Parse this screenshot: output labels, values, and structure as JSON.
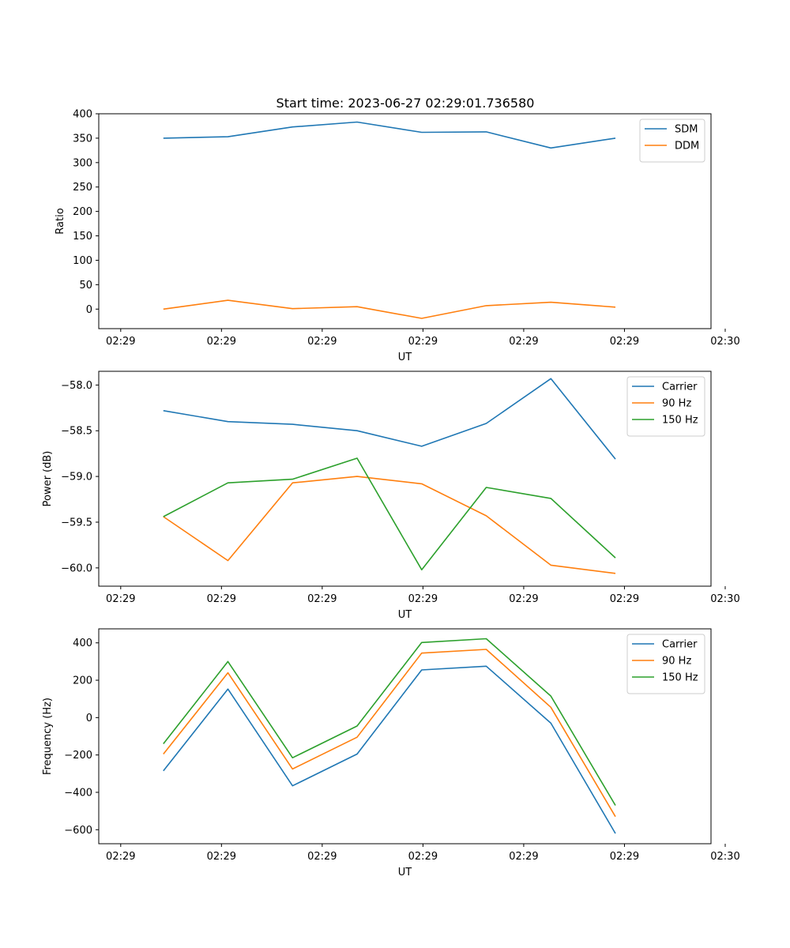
{
  "figure": {
    "title": "Start time: 2023-06-27 02:29:01.736580"
  },
  "chart_data": [
    {
      "type": "line",
      "ylabel": "Ratio",
      "xlabel": "UT",
      "xlim": [
        0,
        4.74
      ],
      "ylim": [
        -40,
        400
      ],
      "x_ticks": [
        {
          "value": 0.17,
          "label": "02:29"
        },
        {
          "value": 0.95,
          "label": "02:29"
        },
        {
          "value": 1.73,
          "label": "02:29"
        },
        {
          "value": 2.51,
          "label": "02:29"
        },
        {
          "value": 3.29,
          "label": "02:29"
        },
        {
          "value": 4.07,
          "label": "02:29"
        },
        {
          "value": 4.85,
          "label": "02:30"
        }
      ],
      "y_ticks": [
        400,
        350,
        300,
        250,
        200,
        150,
        100,
        50,
        0
      ],
      "y_tick_labels": [
        "400",
        "350",
        "300",
        "250",
        "200",
        "150",
        "100",
        "50",
        "0"
      ],
      "x": [
        0.5,
        1.0,
        1.5,
        2.0,
        2.5,
        3.0,
        3.5,
        4.0
      ],
      "series": [
        {
          "name": "SDM",
          "color": "#1f77b4",
          "values": [
            350,
            353,
            373,
            383,
            362,
            363,
            330,
            350
          ]
        },
        {
          "name": "DDM",
          "color": "#ff7f0e",
          "values": [
            0,
            18,
            1,
            5,
            -19,
            7,
            14,
            4
          ]
        }
      ],
      "legend": "upper right"
    },
    {
      "type": "line",
      "ylabel": "Power (dB)",
      "xlabel": "UT",
      "xlim": [
        0,
        4.74
      ],
      "ylim": [
        -60.2,
        -57.85
      ],
      "x_ticks": [
        {
          "value": 0.17,
          "label": "02:29"
        },
        {
          "value": 0.95,
          "label": "02:29"
        },
        {
          "value": 1.73,
          "label": "02:29"
        },
        {
          "value": 2.51,
          "label": "02:29"
        },
        {
          "value": 3.29,
          "label": "02:29"
        },
        {
          "value": 4.07,
          "label": "02:29"
        },
        {
          "value": 4.85,
          "label": "02:30"
        }
      ],
      "y_ticks": [
        -58.0,
        -58.5,
        -59.0,
        -59.5,
        -60.0
      ],
      "y_tick_labels": [
        "−58.0",
        "−58.5",
        "−59.0",
        "−59.5",
        "−60.0"
      ],
      "x": [
        0.5,
        1.0,
        1.5,
        2.0,
        2.5,
        3.0,
        3.5,
        4.0
      ],
      "series": [
        {
          "name": "Carrier",
          "color": "#1f77b4",
          "values": [
            -58.28,
            -58.4,
            -58.43,
            -58.5,
            -58.67,
            -58.42,
            -57.93,
            -58.81
          ]
        },
        {
          "name": "90 Hz",
          "color": "#ff7f0e",
          "values": [
            -59.44,
            -59.92,
            -59.07,
            -59.0,
            -59.08,
            -59.43,
            -59.97,
            -60.06
          ]
        },
        {
          "name": "150 Hz",
          "color": "#2ca02c",
          "values": [
            -59.44,
            -59.07,
            -59.03,
            -58.8,
            -60.02,
            -59.12,
            -59.24,
            -59.89
          ]
        }
      ],
      "legend": "upper right"
    },
    {
      "type": "line",
      "ylabel": "Frequency (Hz)",
      "xlabel": "UT",
      "xlim": [
        0,
        4.74
      ],
      "ylim": [
        -675,
        475
      ],
      "x_ticks": [
        {
          "value": 0.17,
          "label": "02:29"
        },
        {
          "value": 0.95,
          "label": "02:29"
        },
        {
          "value": 1.73,
          "label": "02:29"
        },
        {
          "value": 2.51,
          "label": "02:29"
        },
        {
          "value": 3.29,
          "label": "02:29"
        },
        {
          "value": 4.07,
          "label": "02:29"
        },
        {
          "value": 4.85,
          "label": "02:30"
        }
      ],
      "y_ticks": [
        400,
        200,
        0,
        -200,
        -400,
        -600
      ],
      "y_tick_labels": [
        "400",
        "200",
        "0",
        "−200",
        "−400",
        "−600"
      ],
      "x": [
        0.5,
        1.0,
        1.5,
        2.0,
        2.5,
        3.0,
        3.5,
        4.0
      ],
      "series": [
        {
          "name": "Carrier",
          "color": "#1f77b4",
          "values": [
            -285,
            153,
            -365,
            -195,
            255,
            275,
            -30,
            -620
          ]
        },
        {
          "name": "90 Hz",
          "color": "#ff7f0e",
          "values": [
            -195,
            240,
            -275,
            -105,
            345,
            365,
            55,
            -530
          ]
        },
        {
          "name": "150 Hz",
          "color": "#2ca02c",
          "values": [
            -140,
            300,
            -215,
            -45,
            402,
            422,
            115,
            -470
          ]
        }
      ],
      "legend": "upper right"
    }
  ]
}
